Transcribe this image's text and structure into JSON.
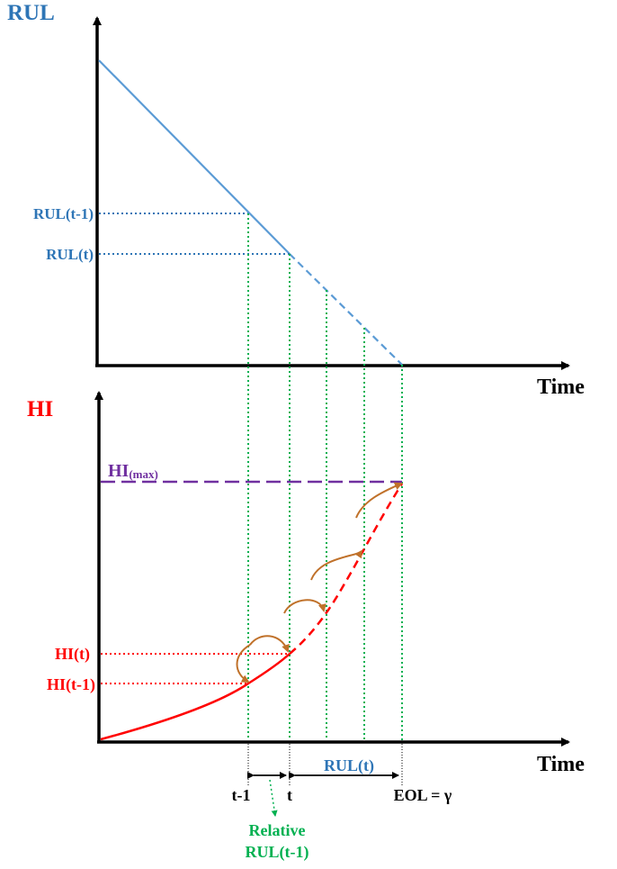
{
  "top_panel": {
    "y_axis_label": "RUL",
    "x_axis_label": "Time",
    "marks": {
      "rul_prev": "RUL(t-1)",
      "rul_now": "RUL(t)"
    }
  },
  "bottom_panel": {
    "y_axis_label": "HI",
    "x_axis_label": "Time",
    "hi_max": {
      "base": "HI",
      "sub": "(max)"
    },
    "marks": {
      "hi_now": "HI(t)",
      "hi_prev": "HI(t-1)"
    }
  },
  "time_marks": {
    "t_prev": "t-1",
    "t_now": "t",
    "eol": "EOL = γ",
    "rul_span": "RUL(t)"
  },
  "relative_rul": {
    "line1": "Relative",
    "line2": "RUL(t-1)"
  },
  "colors": {
    "axis": "#000000",
    "rul_line": "#5b9bd5",
    "rul_text": "#2e75b6",
    "hi_curve": "#ff0000",
    "hi_text": "#ff0000",
    "hi_max": "#7030a0",
    "guide": "#00b050",
    "arrow_arc": "#c0712a"
  }
}
